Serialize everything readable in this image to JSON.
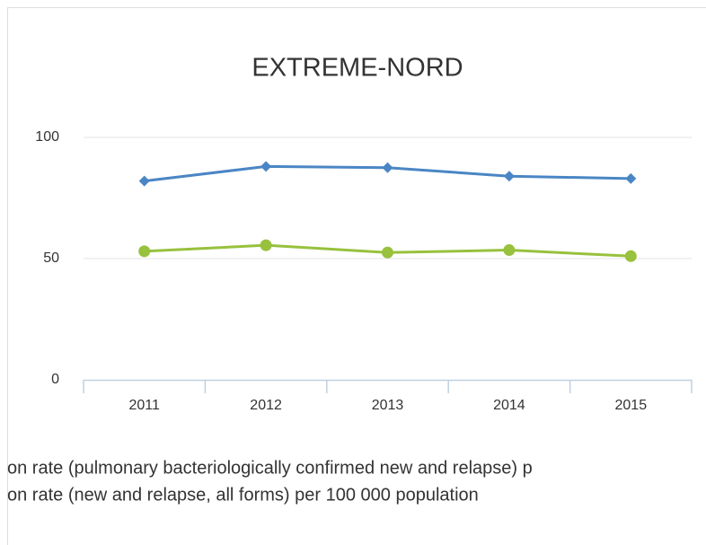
{
  "chart_data": {
    "type": "line",
    "title": "EXTREME-NORD",
    "categories": [
      "2011",
      "2012",
      "2013",
      "2014",
      "2015"
    ],
    "series": [
      {
        "name": "on rate (pulmonary bacteriologically confirmed new and relapse) p",
        "color": "#4a86c5",
        "marker": "diamond",
        "values": [
          82,
          88,
          87.5,
          84,
          83
        ]
      },
      {
        "name": "on rate (new and relapse, all forms) per 100 000 population",
        "color": "#98c13d",
        "marker": "circle",
        "values": [
          53,
          55.5,
          52.5,
          53.5,
          51
        ]
      }
    ],
    "ylim": [
      0,
      100
    ],
    "yticks": [
      0,
      50,
      100
    ],
    "grid": true
  }
}
